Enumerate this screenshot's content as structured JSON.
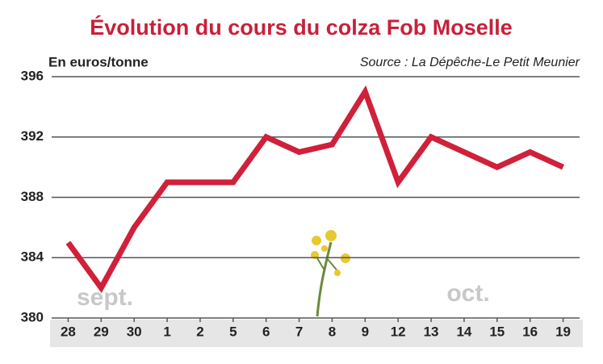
{
  "chart_data": {
    "type": "line",
    "title": "Évolution du cours du colza Fob Moselle",
    "ylabel": "En euros/tonne",
    "source": "Source : La Dépêche-Le Petit Meunier",
    "annotations": [
      "sept.",
      "oct."
    ],
    "categories": [
      "28",
      "29",
      "30",
      "1",
      "2",
      "5",
      "6",
      "7",
      "8",
      "9",
      "12",
      "13",
      "14",
      "15",
      "16",
      "19"
    ],
    "values": [
      385,
      382,
      386,
      389,
      389,
      389,
      392,
      391,
      391.5,
      395,
      389,
      392,
      391,
      390,
      391,
      390
    ],
    "color": "#d0203a",
    "ylim": [
      380,
      396
    ],
    "yticks": [
      380,
      384,
      388,
      392,
      396
    ],
    "grid": true
  }
}
